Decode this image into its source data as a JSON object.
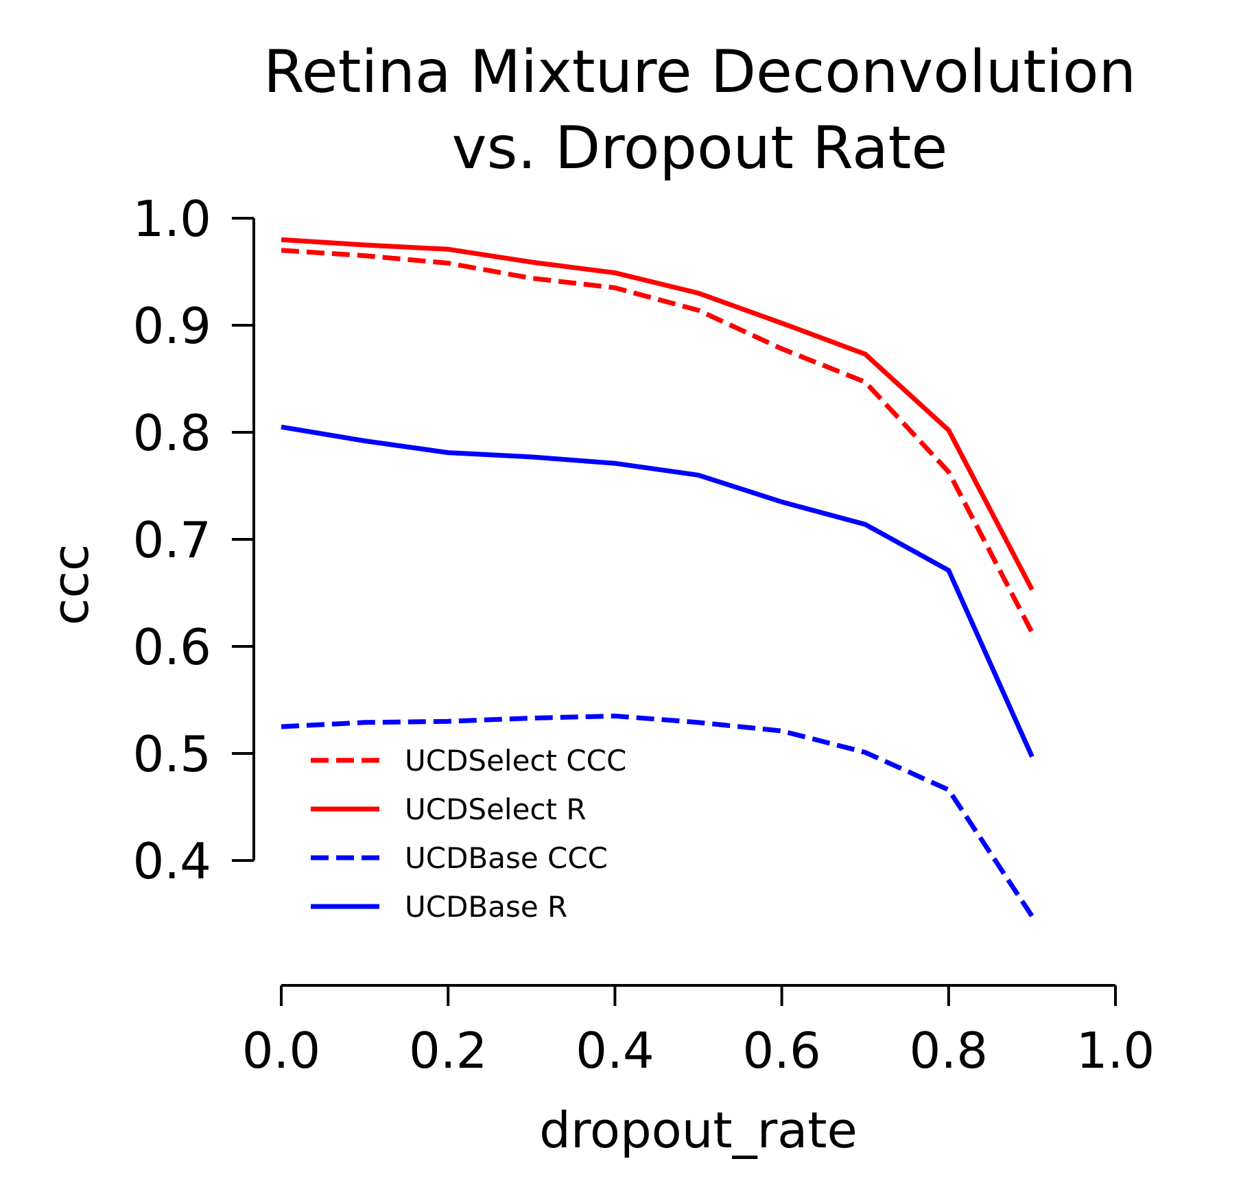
{
  "chart_data": {
    "type": "line",
    "title_lines": [
      "Retina Mixture Deconvolution",
      "vs. Dropout Rate"
    ],
    "xlabel": "dropout_rate",
    "ylabel": "ccc",
    "xlim": [
      0.0,
      1.0
    ],
    "ylim": [
      0.4,
      1.0
    ],
    "xticks": [
      "0.0",
      "0.2",
      "0.4",
      "0.6",
      "0.8",
      "1.0"
    ],
    "yticks": [
      "1.0",
      "0.9",
      "0.8",
      "0.7",
      "0.6",
      "0.5",
      "0.4"
    ],
    "grid": false,
    "legend_position": "lower-left",
    "x": [
      0.0,
      0.1,
      0.2,
      0.3,
      0.4,
      0.5,
      0.6,
      0.7,
      0.8,
      0.9
    ],
    "series": [
      {
        "name": "UCDSelect CCC",
        "color": "#ff0000",
        "style": "dashed",
        "values": [
          0.97,
          0.965,
          0.958,
          0.944,
          0.935,
          0.914,
          0.878,
          0.847,
          0.763,
          0.613
        ]
      },
      {
        "name": "UCDSelect R",
        "color": "#ff0000",
        "style": "solid",
        "values": [
          0.98,
          0.975,
          0.971,
          0.959,
          0.949,
          0.93,
          0.902,
          0.873,
          0.802,
          0.653
        ]
      },
      {
        "name": "UCDBase CCC",
        "color": "#0000ff",
        "style": "dashed",
        "values": [
          0.525,
          0.529,
          0.53,
          0.533,
          0.535,
          0.529,
          0.521,
          0.501,
          0.466,
          0.348
        ]
      },
      {
        "name": "UCDBase R",
        "color": "#0000ff",
        "style": "solid",
        "values": [
          0.805,
          0.792,
          0.781,
          0.777,
          0.771,
          0.76,
          0.735,
          0.714,
          0.671,
          0.497
        ]
      }
    ]
  }
}
